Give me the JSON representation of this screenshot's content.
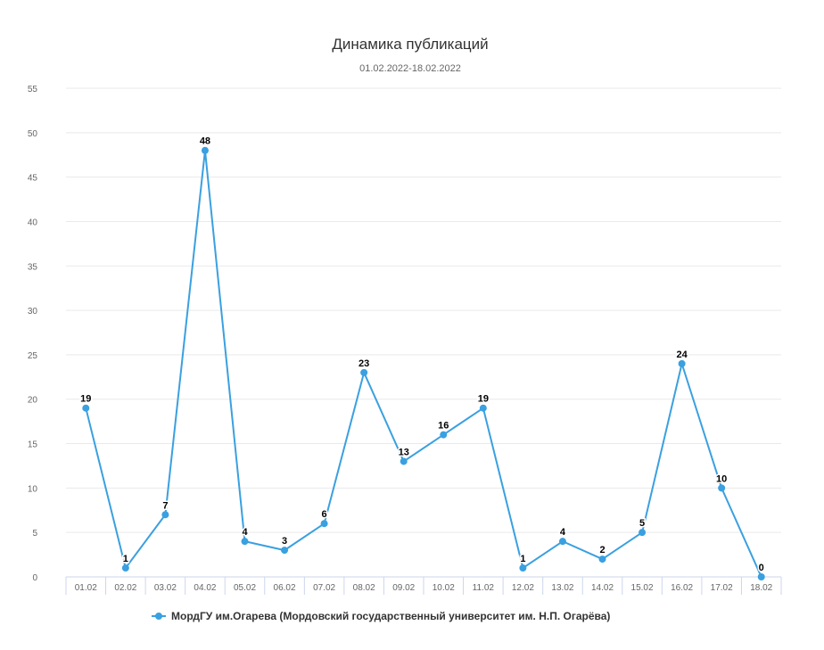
{
  "chart_data": {
    "type": "line",
    "title": "Динамика публикаций",
    "subtitle": "01.02.2022-18.02.2022",
    "xlabel": "",
    "ylabel": "",
    "categories": [
      "01.02",
      "02.02",
      "03.02",
      "04.02",
      "05.02",
      "06.02",
      "07.02",
      "08.02",
      "09.02",
      "10.02",
      "11.02",
      "12.02",
      "13.02",
      "14.02",
      "15.02",
      "16.02",
      "17.02",
      "18.02"
    ],
    "series": [
      {
        "name": "МордГУ им.Огарева (Мордовский государственный университет им. Н.П. Огарёва)",
        "values": [
          19,
          1,
          7,
          48,
          4,
          3,
          6,
          23,
          13,
          16,
          19,
          1,
          4,
          2,
          5,
          24,
          10,
          0
        ],
        "color": "#3aa0e0"
      }
    ],
    "ylim": [
      0,
      55
    ],
    "yticks": [
      0,
      5,
      10,
      15,
      20,
      25,
      30,
      35,
      40,
      45,
      50,
      55
    ],
    "grid": true,
    "data_labels": true,
    "legend_position": "bottom-center"
  }
}
